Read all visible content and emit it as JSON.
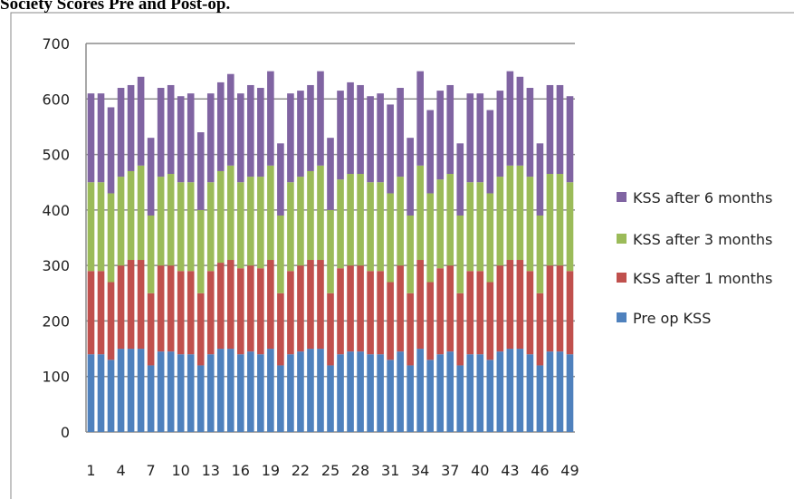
{
  "chart_data": {
    "type": "stacked_bar",
    "title": "Society Scores Pre and Post-op.",
    "categories": [
      1,
      null,
      null,
      4,
      null,
      null,
      7,
      null,
      null,
      10,
      null,
      null,
      13,
      null,
      null,
      16,
      null,
      null,
      19,
      null,
      null,
      22,
      null,
      null,
      25,
      null,
      null,
      28,
      null,
      null,
      31,
      null,
      null,
      34,
      null,
      null,
      37,
      null,
      null,
      40,
      null,
      null,
      43,
      null,
      null,
      46,
      null,
      null,
      49
    ],
    "series": [
      {
        "name": "Pre op KSS",
        "color": "#4f81bd",
        "values": [
          140,
          140,
          130,
          150,
          150,
          150,
          120,
          145,
          145,
          140,
          140,
          120,
          140,
          150,
          150,
          140,
          145,
          140,
          150,
          120,
          140,
          145,
          150,
          150,
          120,
          140,
          145,
          145,
          140,
          140,
          130,
          145,
          120,
          150,
          130,
          140,
          145,
          120,
          140,
          140,
          130,
          145,
          150,
          150,
          140,
          120,
          145,
          145,
          140
        ]
      },
      {
        "name": "KSS after 1 months",
        "color": "#c0504d",
        "values": [
          150,
          150,
          140,
          150,
          160,
          160,
          130,
          155,
          155,
          150,
          150,
          130,
          150,
          155,
          160,
          155,
          155,
          155,
          160,
          130,
          150,
          155,
          160,
          160,
          130,
          155,
          155,
          155,
          150,
          150,
          140,
          155,
          130,
          160,
          140,
          155,
          155,
          130,
          150,
          150,
          140,
          155,
          160,
          160,
          150,
          130,
          155,
          155,
          150
        ]
      },
      {
        "name": "KSS after 3 months",
        "color": "#9bbb59",
        "values": [
          160,
          160,
          160,
          160,
          160,
          170,
          140,
          160,
          165,
          160,
          160,
          150,
          160,
          165,
          170,
          155,
          160,
          165,
          170,
          140,
          160,
          160,
          160,
          170,
          150,
          160,
          165,
          165,
          160,
          160,
          160,
          160,
          140,
          170,
          160,
          160,
          165,
          140,
          160,
          160,
          160,
          160,
          170,
          170,
          170,
          140,
          165,
          165,
          160
        ]
      },
      {
        "name": "KSS after 6 months",
        "color": "#8064a2",
        "values": [
          160,
          160,
          155,
          160,
          155,
          160,
          140,
          160,
          160,
          155,
          160,
          140,
          160,
          160,
          165,
          160,
          165,
          160,
          170,
          130,
          160,
          155,
          155,
          170,
          130,
          160,
          165,
          160,
          155,
          160,
          160,
          160,
          140,
          170,
          150,
          160,
          160,
          130,
          160,
          160,
          150,
          155,
          170,
          160,
          160,
          130,
          160,
          160,
          155
        ]
      }
    ],
    "ylim": [
      0,
      700
    ],
    "yticks": [
      0,
      100,
      200,
      300,
      400,
      500,
      600,
      700
    ],
    "grid": true,
    "legend": "right"
  }
}
